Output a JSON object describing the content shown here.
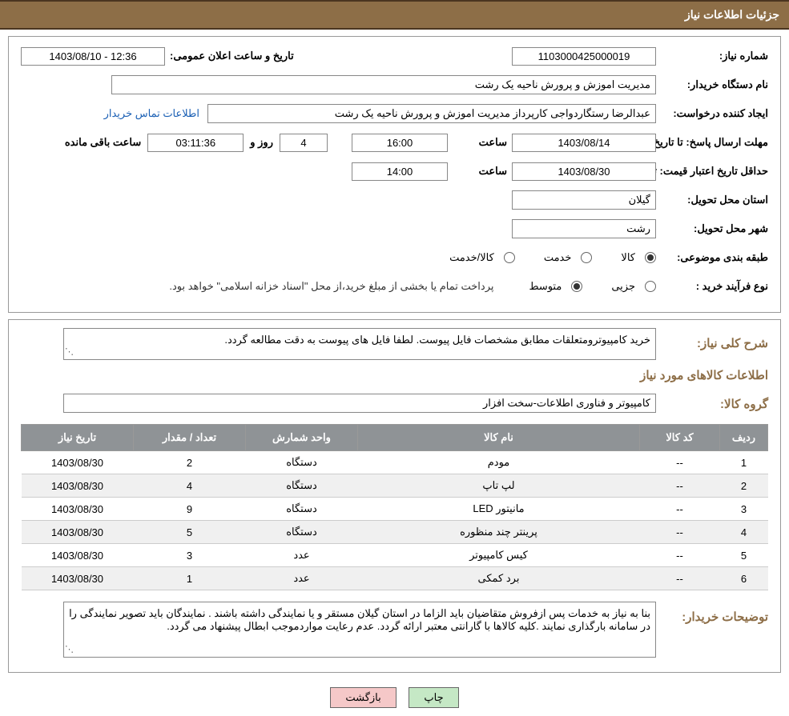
{
  "header": {
    "title": "جزئیات اطلاعات نیاز"
  },
  "info": {
    "need_number_label": "شماره نیاز:",
    "need_number": "1103000425000019",
    "announce_label": "تاریخ و ساعت اعلان عمومی:",
    "announce_value": "1403/08/10 - 12:36",
    "buyer_org_label": "نام دستگاه خریدار:",
    "buyer_org": "مدیریت اموزش و پرورش ناحیه یک رشت",
    "requester_label": "ایجاد کننده درخواست:",
    "requester": "عبدالرضا رستگاردواجی کارپرداز مدیریت اموزش و پرورش ناحیه یک رشت",
    "contact_link": "اطلاعات تماس خریدار",
    "reply_deadline_label": "مهلت ارسال پاسخ: تا تاریخ:",
    "reply_date": "1403/08/14",
    "time_label": "ساعت",
    "reply_time": "16:00",
    "days": "4",
    "days_and_label": "روز و",
    "countdown": "03:11:36",
    "remaining_label": "ساعت باقی مانده",
    "price_validity_label": "حداقل تاریخ اعتبار قیمت: تا تاریخ:",
    "price_date": "1403/08/30",
    "price_time": "14:00",
    "delivery_province_label": "استان محل تحویل:",
    "delivery_province": "گیلان",
    "delivery_city_label": "شهر محل تحویل:",
    "delivery_city": "رشت",
    "category_label": "طبقه بندی موضوعی:",
    "cat_kala": "کالا",
    "cat_khedmat": "خدمت",
    "cat_both": "کالا/خدمت",
    "purchase_type_label": "نوع فرآیند خرید :",
    "pt_partial": "جزیی",
    "pt_medium": "متوسط",
    "payment_note": "پرداخت تمام یا بخشی از مبلغ خرید،از محل \"اسناد خزانه اسلامی\" خواهد بود."
  },
  "need_desc": {
    "title_label": "شرح کلی نیاز:",
    "text": "خرید کامپیوترومتعلقات مطابق مشخصات فایل پیوست. لطفا فایل های پیوست به دقت مطالعه گردد."
  },
  "goods": {
    "section_title": "اطلاعات کالاهای مورد نیاز",
    "group_label": "گروه کالا:",
    "group_value": "کامپیوتر و فناوری اطلاعات-سخت افزار",
    "columns": {
      "row": "ردیف",
      "code": "کد کالا",
      "name": "نام کالا",
      "unit": "واحد شمارش",
      "qty": "تعداد / مقدار",
      "date": "تاریخ نیاز"
    },
    "rows": [
      {
        "r": "1",
        "code": "--",
        "name": "مودم",
        "unit": "دستگاه",
        "qty": "2",
        "date": "1403/08/30"
      },
      {
        "r": "2",
        "code": "--",
        "name": "لپ تاپ",
        "unit": "دستگاه",
        "qty": "4",
        "date": "1403/08/30"
      },
      {
        "r": "3",
        "code": "--",
        "name": "مانیتور LED",
        "unit": "دستگاه",
        "qty": "9",
        "date": "1403/08/30"
      },
      {
        "r": "4",
        "code": "--",
        "name": "پرینتر چند منظوره",
        "unit": "دستگاه",
        "qty": "5",
        "date": "1403/08/30"
      },
      {
        "r": "5",
        "code": "--",
        "name": "کیس کامپیوتر",
        "unit": "عدد",
        "qty": "3",
        "date": "1403/08/30"
      },
      {
        "r": "6",
        "code": "--",
        "name": "برد کمکی",
        "unit": "عدد",
        "qty": "1",
        "date": "1403/08/30"
      }
    ]
  },
  "buyer_notes": {
    "label": "توضیحات خریدار:",
    "text": "بنا به نیاز به خدمات پس ازفروش متقاضیان باید الزاما  در استان گیلان مستقر  و یا نمایندگی داشته باشند . نمایندگان باید تصویر نمایندگی را در سامانه بارگذاری نمایند .کلیه کالاها با گارانتی معتبر ارائه گردد. عدم رعایت مواردموجب ابطال پیشنهاد می گردد."
  },
  "buttons": {
    "print": "چاپ",
    "back": "بازگشت"
  }
}
